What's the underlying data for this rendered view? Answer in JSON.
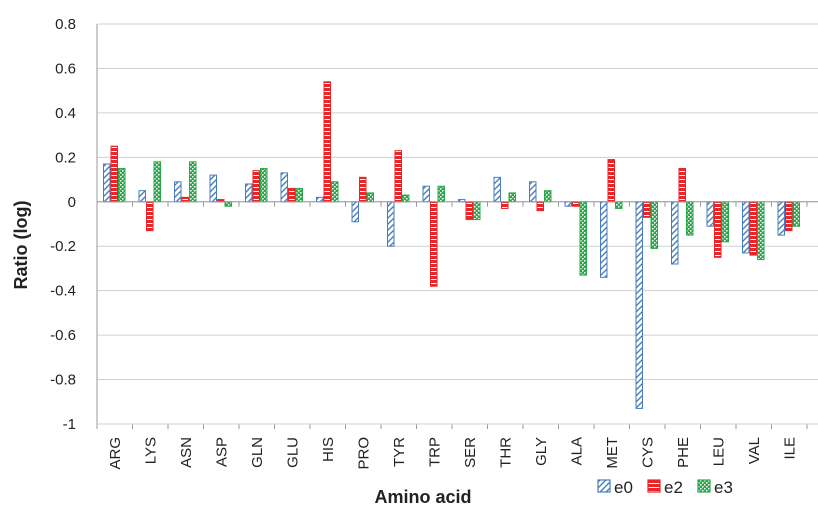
{
  "chart_data": {
    "type": "bar",
    "xlabel": "Amino acid",
    "ylabel": "Ratio (log)",
    "ylim": [
      -1,
      0.8
    ],
    "yticks": [
      -1,
      -0.8,
      -0.6,
      -0.4,
      -0.2,
      0,
      0.2,
      0.4,
      0.6,
      0.8
    ],
    "ytick_labels": [
      "-1",
      "-0.8",
      "-0.6",
      "-0.4",
      "-0.2",
      "0",
      "0.2",
      "0.4",
      "0.6",
      "0.8"
    ],
    "grid": "horizontal",
    "legend_position": "bottom-right",
    "categories": [
      "ARG",
      "LYS",
      "ASN",
      "ASP",
      "GLN",
      "GLU",
      "HIS",
      "PRO",
      "TYR",
      "TRP",
      "SER",
      "THR",
      "GLY",
      "ALA",
      "MET",
      "CYS",
      "PHE",
      "LEU",
      "VAL",
      "ILE"
    ],
    "series": [
      {
        "name": "e0",
        "color": "#4a7ebb",
        "pattern": "diagonal-hatch",
        "values": [
          0.17,
          0.05,
          0.09,
          0.12,
          0.08,
          0.13,
          0.02,
          -0.09,
          -0.2,
          0.07,
          0.01,
          0.11,
          0.09,
          -0.02,
          -0.34,
          -0.93,
          -0.28,
          -0.11,
          -0.23,
          -0.15
        ]
      },
      {
        "name": "e2",
        "color": "#e8262a",
        "pattern": "horizontal-stripes",
        "values": [
          0.25,
          -0.13,
          0.02,
          0.01,
          0.14,
          0.06,
          0.54,
          0.11,
          0.23,
          -0.38,
          -0.08,
          -0.03,
          -0.04,
          -0.02,
          0.19,
          -0.07,
          0.15,
          -0.25,
          -0.24,
          -0.13
        ]
      },
      {
        "name": "e3",
        "color": "#2aa84a",
        "pattern": "dotted",
        "values": [
          0.15,
          0.18,
          0.18,
          -0.02,
          0.15,
          0.06,
          0.09,
          0.04,
          0.03,
          0.07,
          -0.08,
          0.04,
          0.05,
          -0.33,
          -0.03,
          -0.21,
          -0.15,
          -0.18,
          -0.26,
          -0.11
        ]
      }
    ]
  }
}
